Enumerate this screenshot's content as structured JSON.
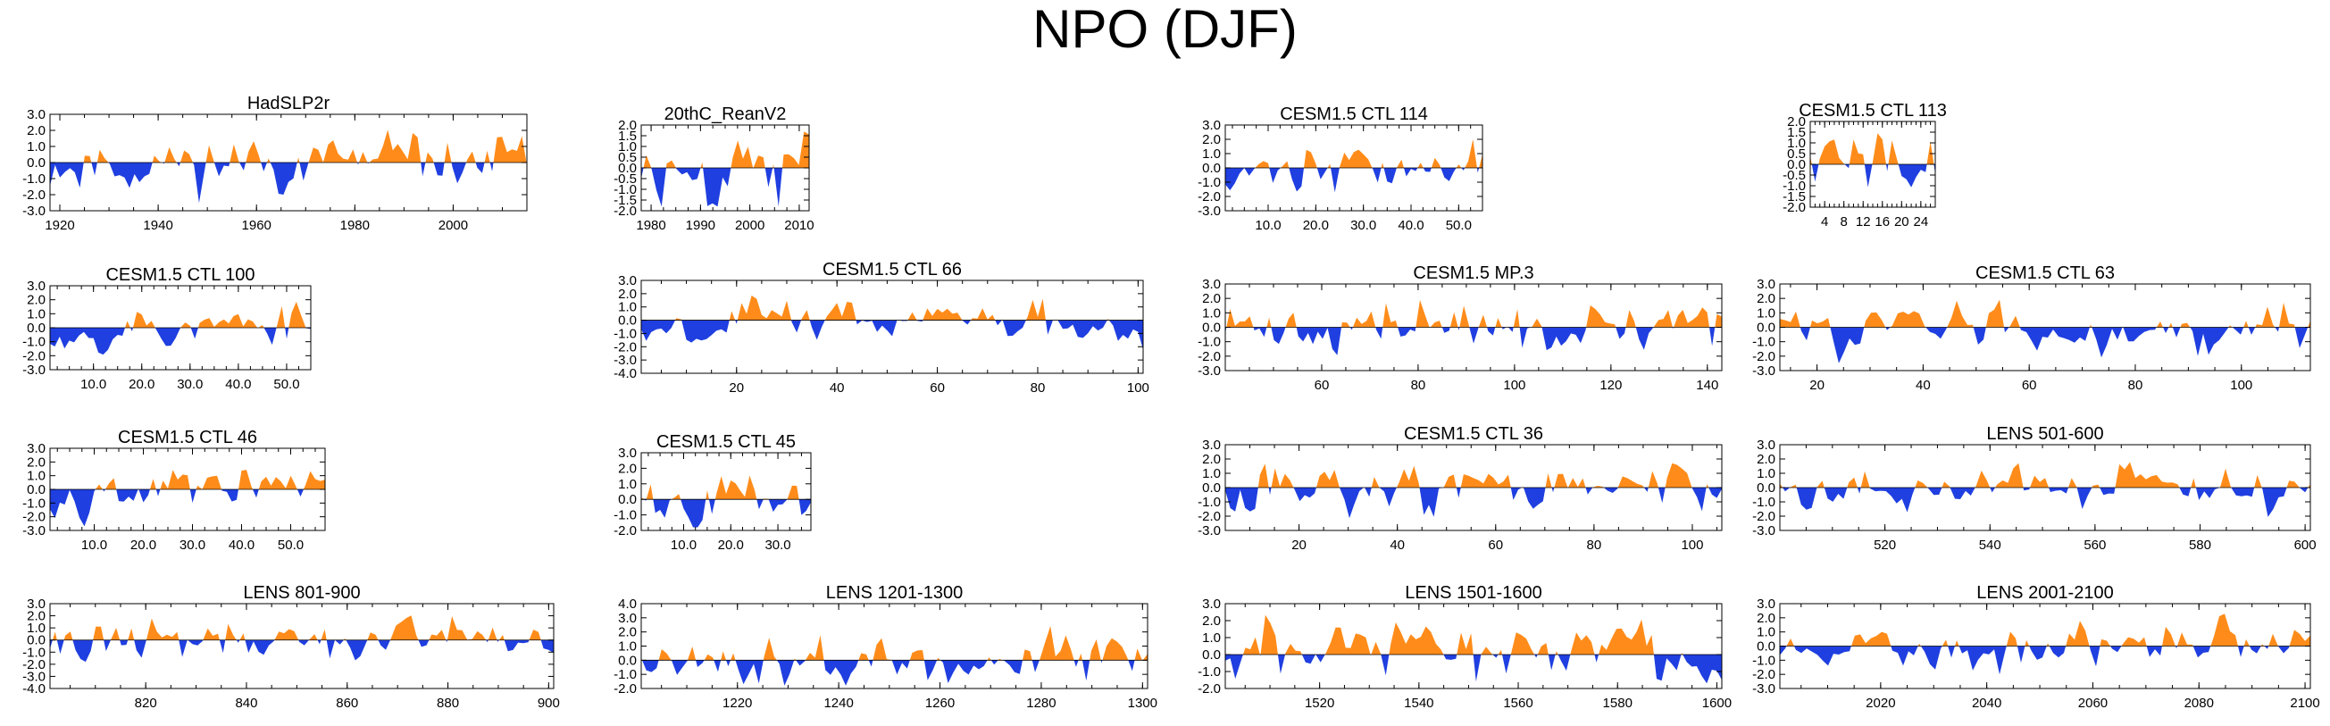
{
  "page_title": "NPO (DJF)",
  "colors": {
    "positive": "#ff8c1a",
    "negative": "#1f3fe0",
    "axis": "#000000"
  },
  "chart_data": [
    {
      "type": "area",
      "title": "HadSLP2r",
      "xlim": [
        1918,
        2015
      ],
      "ylim": [
        -3,
        3
      ],
      "seed": 11,
      "n": 97,
      "amp": 1.1,
      "yticks": [
        3,
        2,
        1,
        0,
        -1,
        -2,
        -3
      ],
      "ytick_labels": [
        "3.0",
        "2.0",
        "1.0",
        "0.0",
        "-1.0",
        "-2.0",
        "-3.0"
      ],
      "xticks": [
        1920,
        1940,
        1960,
        1980,
        2000
      ],
      "xtick_labels": [
        "1920",
        "1940",
        "1960",
        "1980",
        "2000"
      ]
    },
    {
      "type": "area",
      "title": "20thC_ReanV2",
      "xlim": [
        1978,
        2012
      ],
      "ylim": [
        -2,
        2
      ],
      "seed": 23,
      "n": 34,
      "amp": 1.3,
      "yticks": [
        2,
        1.5,
        1,
        0.5,
        0,
        -0.5,
        -1,
        -1.5,
        -2
      ],
      "ytick_labels": [
        "2.0",
        "1.5",
        "1.0",
        "0.5",
        "0.0",
        "-0.5",
        "-1.0",
        "-1.5",
        "-2.0"
      ],
      "xticks": [
        1980,
        1990,
        2000,
        2010
      ],
      "xtick_labels": [
        "1980",
        "1990",
        "2000",
        "2010"
      ]
    },
    {
      "type": "area",
      "title": "CESM1.5 CTL 114",
      "xlim": [
        1,
        55
      ],
      "ylim": [
        -3,
        3
      ],
      "seed": 37,
      "n": 55,
      "amp": 1.0,
      "yticks": [
        3,
        2,
        1,
        0,
        -1,
        -2,
        -3
      ],
      "ytick_labels": [
        "3.0",
        "2.0",
        "1.0",
        "0.0",
        "-1.0",
        "-2.0",
        "-3.0"
      ],
      "xticks": [
        10,
        20,
        30,
        40,
        50
      ],
      "xtick_labels": [
        "10.0",
        "20.0",
        "30.0",
        "40.0",
        "50.0"
      ]
    },
    {
      "type": "area",
      "title": "CESM1.5 CTL 113",
      "xlim": [
        1,
        27
      ],
      "ylim": [
        -2,
        2
      ],
      "seed": 41,
      "n": 27,
      "amp": 1.0,
      "yticks": [
        2,
        1.5,
        1,
        0.5,
        0,
        -0.5,
        -1,
        -1.5,
        -2
      ],
      "ytick_labels": [
        "2.0",
        "1.5",
        "1.0",
        "0.5",
        "0.0",
        "-0.5",
        "-1.0",
        "-1.5",
        "-2.0"
      ],
      "xticks": [
        4,
        8,
        12,
        16,
        20,
        24
      ],
      "xtick_labels": [
        "4",
        "8",
        "12",
        "16",
        "20",
        "24"
      ]
    },
    {
      "type": "area",
      "title": "CESM1.5 CTL 100",
      "xlim": [
        1,
        55
      ],
      "ylim": [
        -3,
        3
      ],
      "seed": 53,
      "n": 55,
      "amp": 1.0,
      "yticks": [
        3,
        2,
        1,
        0,
        -1,
        -2,
        -3
      ],
      "ytick_labels": [
        "3.0",
        "2.0",
        "1.0",
        "0.0",
        "-1.0",
        "-2.0",
        "-3.0"
      ],
      "xticks": [
        10,
        20,
        30,
        40,
        50
      ],
      "xtick_labels": [
        "10.0",
        "20.0",
        "30.0",
        "40.0",
        "50.0"
      ]
    },
    {
      "type": "area",
      "title": "CESM1.5 CTL 66",
      "xlim": [
        1,
        101
      ],
      "ylim": [
        -4,
        3
      ],
      "seed": 67,
      "n": 101,
      "amp": 1.0,
      "yticks": [
        3,
        2,
        1,
        0,
        -1,
        -2,
        -3,
        -4
      ],
      "ytick_labels": [
        "3.0",
        "2.0",
        "1.0",
        "0.0",
        "-1.0",
        "-2.0",
        "-3.0",
        "-4.0"
      ],
      "xticks": [
        20,
        40,
        60,
        80,
        100
      ],
      "xtick_labels": [
        "20",
        "40",
        "60",
        "80",
        "100"
      ]
    },
    {
      "type": "area",
      "title": "CESM1.5 MP.3",
      "xlim": [
        40,
        143
      ],
      "ylim": [
        -3,
        3
      ],
      "seed": 71,
      "n": 103,
      "amp": 1.1,
      "yticks": [
        3,
        2,
        1,
        0,
        -1,
        -2,
        -3
      ],
      "ytick_labels": [
        "3.0",
        "2.0",
        "1.0",
        "0.0",
        "-1.0",
        "-2.0",
        "-3.0"
      ],
      "xticks": [
        60,
        80,
        100,
        120,
        140
      ],
      "xtick_labels": [
        "60",
        "80",
        "100",
        "120",
        "140"
      ]
    },
    {
      "type": "area",
      "title": "CESM1.5 CTL 63",
      "xlim": [
        13,
        113
      ],
      "ylim": [
        -3,
        3
      ],
      "seed": 83,
      "n": 100,
      "amp": 1.0,
      "yticks": [
        3,
        2,
        1,
        0,
        -1,
        -2,
        -3
      ],
      "ytick_labels": [
        "3.0",
        "2.0",
        "1.0",
        "0.0",
        "-1.0",
        "-2.0",
        "-3.0"
      ],
      "xticks": [
        20,
        40,
        60,
        80,
        100
      ],
      "xtick_labels": [
        "20",
        "40",
        "60",
        "80",
        "100"
      ]
    },
    {
      "type": "area",
      "title": "CESM1.5 CTL 46",
      "xlim": [
        1,
        57
      ],
      "ylim": [
        -3,
        3
      ],
      "seed": 97,
      "n": 57,
      "amp": 1.0,
      "yticks": [
        3,
        2,
        1,
        0,
        -1,
        -2,
        -3
      ],
      "ytick_labels": [
        "3.0",
        "2.0",
        "1.0",
        "0.0",
        "-1.0",
        "-2.0",
        "-3.0"
      ],
      "xticks": [
        10,
        20,
        30,
        40,
        50
      ],
      "xtick_labels": [
        "10.0",
        "20.0",
        "30.0",
        "40.0",
        "50.0"
      ]
    },
    {
      "type": "area",
      "title": "CESM1.5 CTL 45",
      "xlim": [
        1,
        37
      ],
      "ylim": [
        -2,
        3
      ],
      "seed": 101,
      "n": 37,
      "amp": 1.0,
      "yticks": [
        3,
        2,
        1,
        0,
        -1,
        -2
      ],
      "ytick_labels": [
        "3.0",
        "2.0",
        "1.0",
        "0.0",
        "-1.0",
        "-2.0"
      ],
      "xticks": [
        10,
        20,
        30
      ],
      "xtick_labels": [
        "10.0",
        "20.0",
        "30.0"
      ]
    },
    {
      "type": "area",
      "title": "CESM1.5 CTL 36",
      "xlim": [
        5,
        106
      ],
      "ylim": [
        -3,
        3
      ],
      "seed": 113,
      "n": 101,
      "amp": 1.1,
      "yticks": [
        3,
        2,
        1,
        0,
        -1,
        -2,
        -3
      ],
      "ytick_labels": [
        "3.0",
        "2.0",
        "1.0",
        "0.0",
        "-1.0",
        "-2.0",
        "-3.0"
      ],
      "xticks": [
        20,
        40,
        60,
        80,
        100
      ],
      "xtick_labels": [
        "20",
        "40",
        "60",
        "80",
        "100"
      ]
    },
    {
      "type": "area",
      "title": "LENS 501-600",
      "xlim": [
        500,
        601
      ],
      "ylim": [
        -3,
        3
      ],
      "seed": 127,
      "n": 101,
      "amp": 1.0,
      "yticks": [
        3,
        2,
        1,
        0,
        -1,
        -2,
        -3
      ],
      "ytick_labels": [
        "3.0",
        "2.0",
        "1.0",
        "0.0",
        "-1.0",
        "-2.0",
        "-3.0"
      ],
      "xticks": [
        520,
        540,
        560,
        580,
        600
      ],
      "xtick_labels": [
        "520",
        "540",
        "560",
        "580",
        "600"
      ]
    },
    {
      "type": "area",
      "title": "LENS 801-900",
      "xlim": [
        801,
        901
      ],
      "ylim": [
        -4,
        3
      ],
      "seed": 131,
      "n": 100,
      "amp": 1.1,
      "yticks": [
        3,
        2,
        1,
        0,
        -1,
        -2,
        -3,
        -4
      ],
      "ytick_labels": [
        "3.0",
        "2.0",
        "1.0",
        "0.0",
        "-1.0",
        "-2.0",
        "-3.0",
        "-4.0"
      ],
      "xticks": [
        820,
        840,
        860,
        880,
        900
      ],
      "xtick_labels": [
        "820",
        "840",
        "860",
        "880",
        "900"
      ]
    },
    {
      "type": "area",
      "title": "LENS 1201-1300",
      "xlim": [
        1201,
        1301
      ],
      "ylim": [
        -2,
        4
      ],
      "seed": 149,
      "n": 100,
      "amp": 1.1,
      "yticks": [
        4,
        3,
        2,
        1,
        0,
        -1,
        -2
      ],
      "ytick_labels": [
        "4.0",
        "3.0",
        "2.0",
        "1.0",
        "0.0",
        "-1.0",
        "-2.0"
      ],
      "xticks": [
        1220,
        1240,
        1260,
        1280,
        1300
      ],
      "xtick_labels": [
        "1220",
        "1240",
        "1260",
        "1280",
        "1300"
      ]
    },
    {
      "type": "area",
      "title": "LENS 1501-1600",
      "xlim": [
        1501,
        1601
      ],
      "ylim": [
        -2,
        3
      ],
      "seed": 151,
      "n": 100,
      "amp": 1.1,
      "yticks": [
        3,
        2,
        1,
        0,
        -1,
        -2
      ],
      "ytick_labels": [
        "3.0",
        "2.0",
        "1.0",
        "0.0",
        "-1.0",
        "-2.0"
      ],
      "xticks": [
        1520,
        1540,
        1560,
        1580,
        1600
      ],
      "xtick_labels": [
        "1520",
        "1540",
        "1560",
        "1580",
        "1600"
      ]
    },
    {
      "type": "area",
      "title": "LENS 2001-2100",
      "xlim": [
        2001,
        2101
      ],
      "ylim": [
        -3,
        3
      ],
      "seed": 163,
      "n": 100,
      "amp": 1.0,
      "yticks": [
        3,
        2,
        1,
        0,
        -1,
        -2,
        -3
      ],
      "ytick_labels": [
        "3.0",
        "2.0",
        "1.0",
        "0.0",
        "-1.0",
        "-2.0",
        "-3.0"
      ],
      "xticks": [
        2020,
        2040,
        2060,
        2080,
        2100
      ],
      "xtick_labels": [
        "2020",
        "2040",
        "2060",
        "2080",
        "2100"
      ]
    }
  ]
}
